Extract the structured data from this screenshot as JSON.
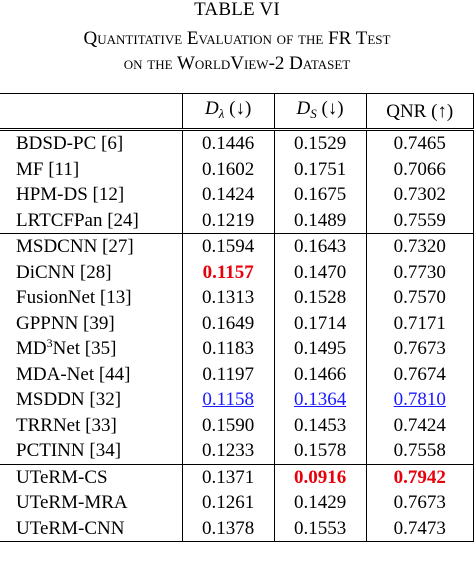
{
  "caption": {
    "table_label": "TABLE VI",
    "line1": "Quantitative Evaluation of the FR Test",
    "line2": "on the WorldView-2 Dataset"
  },
  "columns": {
    "method": "",
    "d_lambda": {
      "symbol": "D",
      "subscript": "λ",
      "arrow": "(↓)"
    },
    "d_s": {
      "symbol": "D",
      "subscript": "S",
      "arrow": "(↓)"
    },
    "qnr": {
      "label": "QNR",
      "arrow": "(↑)"
    }
  },
  "groups": [
    {
      "rows": [
        {
          "method": "BDSD-PC [6]",
          "d_lambda": "0.1446",
          "d_s": "0.1529",
          "qnr": "0.7465"
        },
        {
          "method": "MF [11]",
          "d_lambda": "0.1602",
          "d_s": "0.1751",
          "qnr": "0.7066"
        },
        {
          "method": "HPM-DS [12]",
          "d_lambda": "0.1424",
          "d_s": "0.1675",
          "qnr": "0.7302"
        },
        {
          "method": "LRTCFPan [24]",
          "d_lambda": "0.1219",
          "d_s": "0.1489",
          "qnr": "0.7559"
        }
      ]
    },
    {
      "rows": [
        {
          "method": "MSDCNN [27]",
          "d_lambda": "0.1594",
          "d_s": "0.1643",
          "qnr": "0.7320"
        },
        {
          "method": "DiCNN [28]",
          "d_lambda": "0.1157",
          "d_s": "0.1470",
          "qnr": "0.7730"
        },
        {
          "method": "FusionNet [13]",
          "d_lambda": "0.1313",
          "d_s": "0.1528",
          "qnr": "0.7570"
        },
        {
          "method": "GPPNN [39]",
          "d_lambda": "0.1649",
          "d_s": "0.1714",
          "qnr": "0.7171"
        },
        {
          "method_pre": "MD",
          "method_sup": "3",
          "method_post": "Net [35]",
          "d_lambda": "0.1183",
          "d_s": "0.1495",
          "qnr": "0.7673"
        },
        {
          "method": "MDA-Net [44]",
          "d_lambda": "0.1197",
          "d_s": "0.1466",
          "qnr": "0.7674"
        },
        {
          "method": "MSDDN [32]",
          "d_lambda": "0.1158",
          "d_s": "0.1364",
          "qnr": "0.7810"
        },
        {
          "method": "TRRNet [33]",
          "d_lambda": "0.1590",
          "d_s": "0.1453",
          "qnr": "0.7424"
        },
        {
          "method": "PCTINN [34]",
          "d_lambda": "0.1233",
          "d_s": "0.1578",
          "qnr": "0.7558"
        }
      ]
    },
    {
      "rows": [
        {
          "method": "UTeRM-CS",
          "d_lambda": "0.1371",
          "d_s": "0.0916",
          "qnr": "0.7942"
        },
        {
          "method": "UTeRM-MRA",
          "d_lambda": "0.1261",
          "d_s": "0.1429",
          "qnr": "0.7673"
        },
        {
          "method": "UTeRM-CNN",
          "d_lambda": "0.1378",
          "d_s": "0.1553",
          "qnr": "0.7473"
        }
      ]
    }
  ],
  "highlight_colors": {
    "best": "#e8000b",
    "second": "#1a1aff"
  }
}
